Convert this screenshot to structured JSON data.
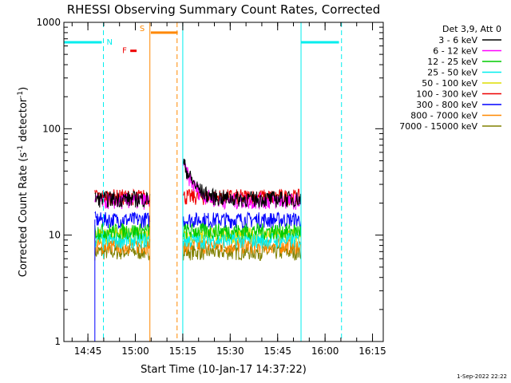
{
  "chart_data": {
    "type": "line",
    "title": "RHESSI Observing Summary Count Rates, Corrected",
    "xlabel": "Start Time (10-Jan-17 14:37:22)",
    "ylabel_main": "Corrected Count Rate (s",
    "ylabel_sup1": "-1",
    "ylabel_mid": " detector",
    "ylabel_sup2": "-1",
    "ylabel_end": ")",
    "footer": "1-Sep-2022 22:22",
    "yscale": "log",
    "ylim": [
      1,
      1000
    ],
    "xlim_minutes": [
      0,
      101
    ],
    "y_ticks": [
      "1",
      "10",
      "100",
      "1000"
    ],
    "x_ticks": [
      {
        "label": "14:45",
        "minute": 7.6
      },
      {
        "label": "15:00",
        "minute": 22.6
      },
      {
        "label": "15:15",
        "minute": 37.6
      },
      {
        "label": "15:30",
        "minute": 52.6
      },
      {
        "label": "15:45",
        "minute": 67.6
      },
      {
        "label": "16:00",
        "minute": 82.6
      },
      {
        "label": "16:15",
        "minute": 97.6
      }
    ],
    "legend_header": "Det 3,9, Att 0",
    "legend_placement": "right",
    "series": [
      {
        "name": "3 - 6 keV",
        "color": "#000000",
        "level": 22
      },
      {
        "name": "6 - 12 keV",
        "color": "#ff00ff",
        "level": 21
      },
      {
        "name": "12 - 25 keV",
        "color": "#00cc00",
        "level": 11
      },
      {
        "name": "25 - 50 keV",
        "color": "#00eeee",
        "level": 9
      },
      {
        "name": "50 - 100 keV",
        "color": "#dddd00",
        "level": 10
      },
      {
        "name": "100 - 300 keV",
        "color": "#ee0000",
        "level": 23
      },
      {
        "name": "300 - 800 keV",
        "color": "#0000ff",
        "level": 14
      },
      {
        "name": "800 - 7000 keV",
        "color": "#ff8800",
        "level": 8
      },
      {
        "name": "7000 - 15000 keV",
        "color": "#808000",
        "level": 7
      }
    ],
    "flag_labels": {
      "night": "N",
      "saa": "S",
      "flare": "F"
    },
    "flag_bars": [
      {
        "label_key": "night",
        "color": "#00eeee",
        "start": 0,
        "end": 12,
        "level": 650
      },
      {
        "label_key": "night",
        "color": "#00eeee",
        "start": 75,
        "end": 87,
        "level": 650
      },
      {
        "label_key": "saa",
        "color": "#ff8800",
        "start": 27.5,
        "end": 36,
        "level": 800
      },
      {
        "label_key": "flare",
        "color": "#ee0000",
        "start": 21,
        "end": 23,
        "level": 540
      }
    ],
    "vertical_lines": [
      {
        "minute": 12.5,
        "color": "#00eeee",
        "style": "dashed"
      },
      {
        "minute": 27.2,
        "color": "#ff8800",
        "style": "solid"
      },
      {
        "minute": 35.8,
        "color": "#ff8800",
        "style": "dashed"
      },
      {
        "minute": 37.6,
        "color": "#00eeee",
        "style": "solid"
      },
      {
        "minute": 75.0,
        "color": "#00eeee",
        "style": "solid"
      },
      {
        "minute": 87.8,
        "color": "#00eeee",
        "style": "dashed"
      }
    ],
    "segments": [
      [
        9.8,
        27.2
      ],
      [
        37.8,
        75.0
      ]
    ]
  }
}
